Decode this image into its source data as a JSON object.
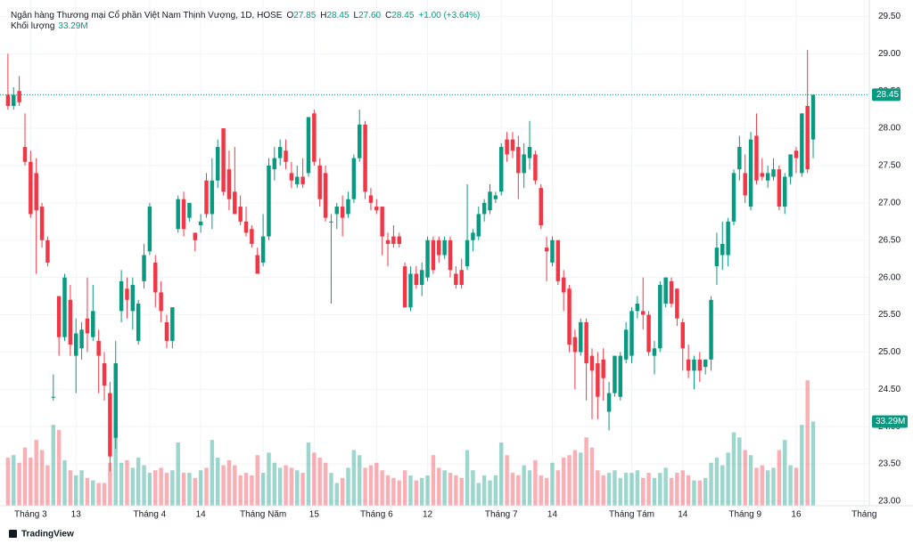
{
  "chart_data": {
    "type": "candlestick",
    "header": {
      "title": "Ngân hàng Thương mại Cổ phần Việt Nam Thịnh Vượng, 1D, HOSE",
      "ohlc": [
        {
          "key": "O",
          "label": "27.85"
        },
        {
          "key": "H",
          "label": "28.45"
        },
        {
          "key": "L",
          "label": "27.60"
        },
        {
          "key": "C",
          "label": "28.45"
        }
      ],
      "change": "+1.00 (+3.64%)",
      "volume_label": "Khối lượng",
      "volume_value": "33.29M"
    },
    "brand": "TradingView",
    "up_color": "#089981",
    "down_color": "#f23645",
    "open": [
      28.45,
      28.3,
      28.5,
      27.75,
      27.55,
      27.4,
      26.95,
      26.5,
      24.4,
      25.75,
      25.2,
      25.7,
      24.95,
      25.05,
      25.45,
      25.2,
      25.15,
      24.85,
      24.45,
      23.85,
      25.55,
      25.85,
      25.55,
      25.15,
      25.95,
      26.35,
      26.2,
      25.8,
      25.4,
      25.15,
      26.65,
      27.05,
      26.8,
      26.6,
      26.7,
      27.3,
      26.85,
      27.3,
      28.0,
      27.45,
      27.15,
      26.95,
      26.75,
      26.65,
      26.3,
      26.2,
      26.55,
      27.45,
      27.6,
      27.7,
      27.4,
      27.25,
      27.35,
      27.4,
      28.2,
      27.5,
      27.4,
      26.75,
      26.85,
      26.95,
      26.85,
      27.05,
      27.6,
      28.05,
      27.1,
      26.95,
      26.95,
      26.5,
      26.55,
      26.55,
      26.15,
      25.6,
      26.05,
      25.9,
      26.0,
      26.5,
      26.5,
      26.3,
      26.5,
      26.05,
      26.1,
      26.15,
      26.5,
      26.55,
      26.85,
      26.9,
      27.05,
      27.15,
      27.85,
      27.85,
      27.75,
      27.4,
      27.6,
      27.65,
      27.2,
      26.4,
      26.2,
      26.5,
      26.0,
      25.85,
      25.2,
      25.0,
      25.4,
      24.95,
      24.85,
      24.9,
      24.2,
      24.45,
      24.4,
      24.9,
      24.95,
      25.55,
      25.55,
      25.5,
      24.95,
      25.05,
      25.65,
      25.95,
      25.85,
      25.4,
      24.9,
      24.75,
      24.9,
      24.8,
      24.9,
      26.15,
      26.3,
      26.3,
      26.75,
      27.45,
      27.4,
      26.95,
      27.9,
      27.4,
      27.3,
      27.35,
      27.45,
      26.95,
      27.35,
      27.7,
      27.4,
      28.3,
      27.85
    ],
    "high": [
      29.0,
      28.55,
      28.7,
      28.2,
      27.7,
      27.6,
      27.0,
      26.55,
      24.7,
      25.75,
      26.05,
      25.9,
      25.45,
      25.4,
      26.0,
      25.9,
      25.3,
      25.0,
      24.6,
      25.15,
      26.1,
      26.0,
      26.0,
      25.7,
      26.45,
      27.0,
      26.3,
      25.95,
      25.5,
      25.6,
      27.1,
      27.15,
      27.0,
      26.6,
      26.85,
      27.4,
      27.6,
      27.85,
      28.0,
      27.7,
      27.75,
      27.1,
      26.95,
      26.7,
      26.4,
      26.85,
      27.6,
      27.75,
      27.85,
      27.85,
      27.55,
      27.5,
      27.6,
      28.15,
      28.25,
      27.6,
      27.5,
      26.85,
      27.0,
      27.1,
      27.15,
      27.65,
      28.25,
      28.1,
      27.2,
      27.05,
      26.95,
      26.6,
      26.7,
      26.6,
      26.2,
      26.15,
      26.15,
      26.2,
      26.55,
      26.55,
      26.55,
      26.55,
      26.55,
      26.15,
      26.25,
      27.25,
      26.65,
      26.95,
      27.05,
      27.25,
      27.15,
      27.8,
      27.95,
      27.95,
      27.9,
      27.8,
      28.1,
      27.7,
      27.25,
      26.55,
      26.55,
      26.5,
      26.1,
      25.9,
      25.3,
      25.45,
      25.45,
      25.05,
      25.0,
      25.05,
      24.6,
      24.95,
      25.0,
      25.4,
      25.6,
      25.75,
      26.0,
      25.55,
      25.15,
      25.95,
      26.0,
      26.0,
      25.85,
      25.45,
      25.1,
      24.95,
      25.0,
      24.9,
      25.75,
      26.6,
      26.75,
      26.8,
      27.45,
      27.9,
      27.65,
      27.95,
      28.2,
      27.6,
      27.5,
      27.6,
      27.5,
      27.4,
      27.65,
      27.75,
      28.2,
      29.05,
      28.45
    ],
    "low": [
      28.25,
      28.25,
      28.3,
      27.5,
      26.8,
      26.05,
      26.4,
      26.15,
      24.35,
      24.95,
      25.15,
      24.95,
      24.45,
      24.9,
      25.0,
      25.15,
      24.45,
      24.35,
      23.4,
      23.7,
      25.4,
      25.45,
      25.3,
      25.1,
      25.85,
      26.3,
      25.6,
      25.4,
      25.05,
      25.05,
      26.6,
      26.55,
      26.75,
      26.35,
      26.6,
      26.8,
      26.65,
      27.2,
      27.1,
      26.9,
      26.85,
      26.7,
      26.55,
      26.4,
      26.05,
      26.15,
      26.5,
      27.3,
      27.5,
      27.45,
      27.2,
      27.2,
      27.2,
      27.35,
      27.5,
      26.95,
      26.75,
      25.65,
      26.65,
      26.55,
      26.8,
      27.0,
      27.55,
      27.05,
      26.9,
      26.85,
      26.3,
      26.15,
      26.4,
      26.4,
      25.6,
      25.55,
      25.85,
      25.75,
      25.95,
      26.05,
      26.2,
      26.25,
      26.0,
      25.85,
      25.85,
      26.1,
      26.35,
      26.5,
      26.75,
      26.85,
      27.0,
      27.1,
      27.55,
      27.6,
      27.05,
      27.2,
      27.45,
      27.25,
      26.65,
      25.95,
      26.15,
      25.9,
      25.55,
      25.0,
      24.5,
      24.95,
      24.35,
      24.1,
      24.1,
      24.35,
      23.95,
      24.4,
      24.35,
      24.85,
      24.85,
      25.45,
      25.3,
      24.95,
      24.7,
      25.0,
      25.6,
      25.6,
      25.35,
      24.75,
      24.65,
      24.5,
      24.6,
      24.7,
      24.75,
      25.9,
      26.1,
      26.15,
      26.7,
      27.3,
      27.0,
      26.9,
      27.25,
      27.3,
      27.2,
      27.3,
      26.9,
      26.85,
      27.25,
      27.4,
      27.35,
      27.4,
      27.6
    ],
    "close": [
      28.3,
      28.45,
      28.35,
      27.55,
      26.85,
      26.9,
      26.5,
      26.2,
      24.4,
      25.2,
      26.0,
      25.1,
      25.25,
      25.3,
      25.25,
      25.55,
      24.95,
      24.55,
      23.6,
      24.85,
      25.95,
      25.7,
      25.9,
      25.65,
      26.3,
      26.95,
      25.8,
      25.55,
      25.15,
      25.6,
      27.05,
      26.65,
      27.0,
      26.5,
      26.75,
      26.85,
      27.3,
      27.75,
      27.15,
      27.05,
      26.85,
      26.75,
      26.6,
      26.45,
      26.05,
      26.55,
      27.5,
      27.6,
      27.75,
      27.55,
      27.3,
      27.35,
      27.25,
      28.15,
      27.55,
      27.05,
      26.8,
      26.75,
      26.95,
      26.8,
      27.05,
      27.6,
      28.05,
      27.15,
      27.0,
      26.9,
      26.55,
      26.45,
      26.45,
      26.45,
      25.6,
      26.05,
      25.9,
      26.1,
      26.5,
      26.1,
      26.3,
      26.5,
      26.1,
      25.9,
      25.9,
      26.5,
      26.6,
      26.85,
      27.0,
      27.15,
      27.1,
      27.75,
      27.65,
      27.7,
      27.4,
      27.65,
      27.75,
      27.3,
      26.7,
      26.35,
      26.5,
      25.95,
      25.8,
      25.1,
      25.0,
      25.4,
      24.85,
      24.75,
      24.4,
      24.65,
      24.45,
      24.95,
      24.95,
      25.3,
      25.55,
      25.65,
      25.5,
      25.0,
      25.05,
      25.9,
      26.0,
      25.65,
      25.45,
      25.05,
      24.75,
      24.9,
      24.75,
      24.9,
      25.7,
      26.4,
      26.45,
      26.75,
      27.4,
      27.75,
      27.1,
      27.85,
      27.3,
      27.35,
      27.4,
      27.45,
      26.95,
      27.35,
      27.65,
      27.6,
      28.2,
      27.45,
      28.45
    ],
    "volume": [
      19,
      20,
      17,
      23,
      19,
      26,
      22,
      16,
      32,
      30,
      18,
      14,
      12,
      14,
      11,
      10,
      9,
      9,
      17,
      30,
      17,
      18,
      15,
      19,
      16,
      13,
      14,
      15,
      13,
      14,
      25,
      13,
      13,
      11,
      14,
      15,
      26,
      19,
      16,
      18,
      16,
      12,
      13,
      12,
      20,
      13,
      21,
      17,
      15,
      16,
      15,
      14,
      13,
      25,
      21,
      19,
      17,
      13,
      9,
      11,
      15,
      22,
      20,
      15,
      16,
      17,
      14,
      12,
      11,
      10,
      14,
      12,
      10,
      11,
      12,
      20,
      15,
      14,
      13,
      12,
      11,
      22,
      14,
      9,
      12,
      10,
      12,
      25,
      20,
      13,
      12,
      16,
      14,
      18,
      12,
      11,
      17,
      14,
      19,
      20,
      22,
      21,
      27,
      23,
      14,
      12,
      13,
      14,
      11,
      13,
      13,
      14,
      11,
      13,
      11,
      13,
      15,
      11,
      13,
      14,
      12,
      10,
      10,
      11,
      17,
      19,
      16,
      21,
      29,
      27,
      22,
      20,
      15,
      16,
      14,
      15,
      22,
      26,
      16,
      15,
      32,
      49.6,
      33.29
    ],
    "xlim": [
      -1.4,
      151.9
    ],
    "xticks": [
      {
        "value": 4,
        "label": "Tháng 3"
      },
      {
        "value": 12,
        "label": "13"
      },
      {
        "value": 25,
        "label": "Tháng 4"
      },
      {
        "value": 34,
        "label": "14"
      },
      {
        "value": 45,
        "label": "Tháng Năm"
      },
      {
        "value": 54,
        "label": "15"
      },
      {
        "value": 65,
        "label": "Tháng 6"
      },
      {
        "value": 74,
        "label": "12"
      },
      {
        "value": 87,
        "label": "Tháng 7"
      },
      {
        "value": 96,
        "label": "14"
      },
      {
        "value": 110,
        "label": "Tháng Tám"
      },
      {
        "value": 119,
        "label": "14"
      },
      {
        "value": 130,
        "label": "Tháng 9"
      },
      {
        "value": 139,
        "label": "16"
      },
      {
        "value": 151,
        "label": "Tháng"
      }
    ],
    "ylim": [
      22.94,
      29.72
    ],
    "yticks": [
      {
        "value": 23,
        "label": "23.00"
      },
      {
        "value": 23.5,
        "label": "23.50"
      },
      {
        "value": 24,
        "label": "24.00"
      },
      {
        "value": 24.5,
        "label": "24.50"
      },
      {
        "value": 25,
        "label": "25.00"
      },
      {
        "value": 25.5,
        "label": "25.50"
      },
      {
        "value": 26,
        "label": "26.00"
      },
      {
        "value": 26.5,
        "label": "26.50"
      },
      {
        "value": 27,
        "label": "27.00"
      },
      {
        "value": 27.5,
        "label": "27.50"
      },
      {
        "value": 28,
        "label": "28.00"
      },
      {
        "value": 28.5,
        "label": "28.50"
      },
      {
        "value": 29,
        "label": "29.00"
      },
      {
        "value": 29.5,
        "label": "29.50"
      }
    ],
    "vlim": [
      0,
      200
    ],
    "grid": true
  }
}
